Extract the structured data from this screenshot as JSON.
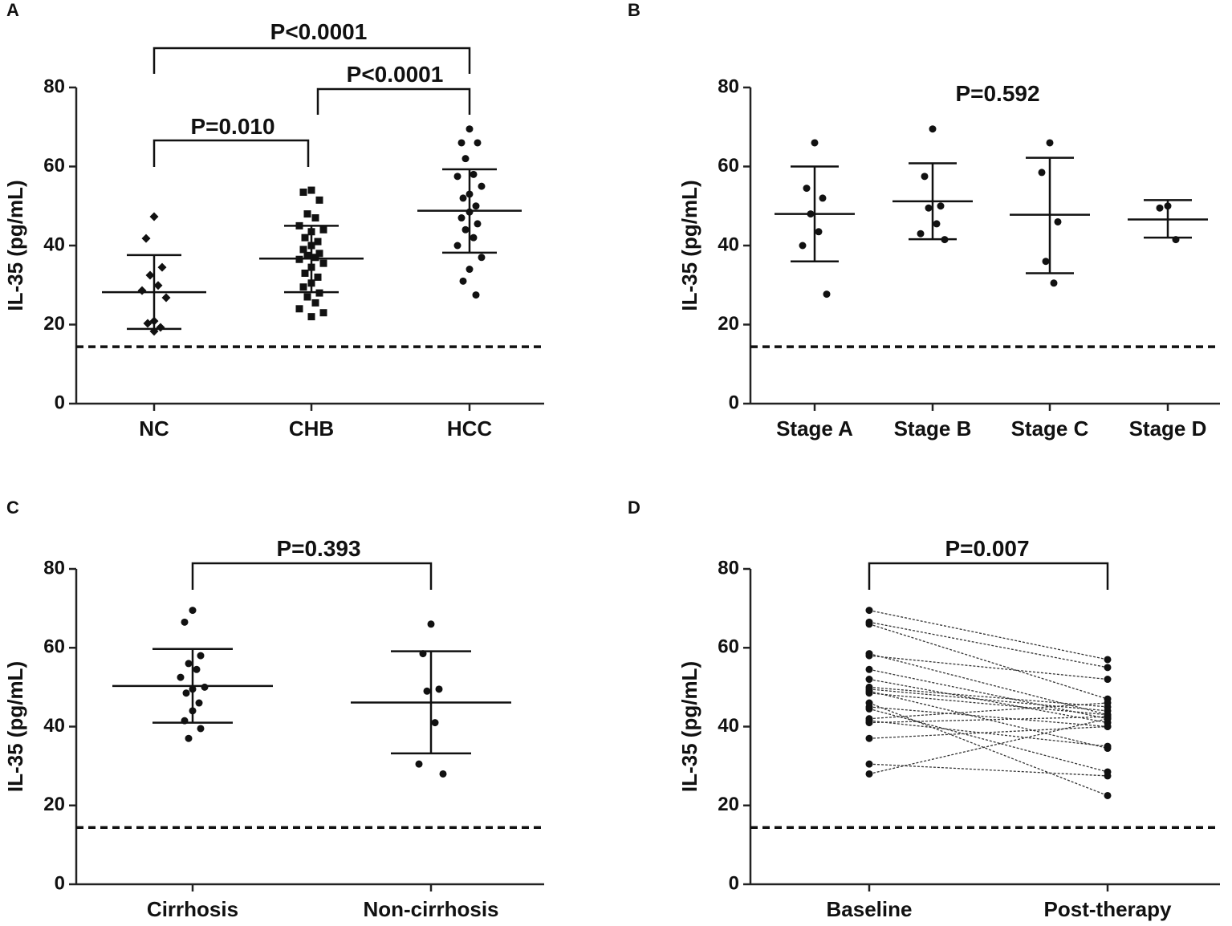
{
  "chart_data": [
    {
      "type": "dot_plot",
      "panel_label": "A",
      "ylabel": "IL-35 (pg/mL)",
      "categories": [
        "NC",
        "CHB",
        "HCC"
      ],
      "marker": [
        "diamond",
        "square",
        "circle"
      ],
      "values": [
        [
          47.3,
          41.8,
          34.5,
          32.5,
          29.9,
          28.6,
          26.8,
          20.9,
          20.3,
          19.3,
          18.3
        ],
        [
          54,
          53.5,
          51.5,
          48,
          47,
          45,
          44,
          43.5,
          42,
          41,
          40,
          39,
          38,
          37.5,
          37,
          36.5,
          35.5,
          34.5,
          33,
          32,
          30.5,
          29.5,
          28,
          27,
          25.5,
          24,
          23,
          22
        ],
        [
          69.5,
          66,
          66,
          62,
          58,
          57.5,
          55,
          53,
          52,
          50,
          48.5,
          47,
          45.5,
          44,
          42,
          40,
          37,
          34,
          31,
          27.5
        ]
      ],
      "mean": [
        28.2,
        36.7,
        48.8
      ],
      "sd_high": [
        37.6,
        45,
        59.3
      ],
      "sd_low": [
        18.9,
        28.2,
        38.2
      ],
      "reference_line": 14.4,
      "ylim": [
        0,
        80
      ],
      "yticks": [
        0,
        20,
        40,
        60,
        80
      ],
      "annotations": [
        "P<0.0001",
        "P<0.0001",
        "P=0.010"
      ]
    },
    {
      "type": "dot_plot",
      "panel_label": "B",
      "ylabel": "IL-35 (pg/mL)",
      "categories": [
        "Stage A",
        "Stage B",
        "Stage C",
        "Stage D"
      ],
      "marker": [
        "circle",
        "circle",
        "circle",
        "circle"
      ],
      "values": [
        [
          66,
          54.5,
          52,
          48,
          43.5,
          40,
          27.7
        ],
        [
          69.5,
          57.5,
          50,
          49.5,
          45.5,
          43,
          41.5
        ],
        [
          66,
          58.5,
          46,
          36,
          30.5
        ],
        [
          50,
          49.5,
          41.5
        ]
      ],
      "mean": [
        48,
        51.2,
        47.8,
        46.6
      ],
      "sd_high": [
        60,
        60.8,
        62.2,
        51.5
      ],
      "sd_low": [
        36,
        41.6,
        33,
        42
      ],
      "reference_line": 14.4,
      "ylim": [
        0,
        80
      ],
      "yticks": [
        0,
        20,
        40,
        60,
        80
      ],
      "annotations": [
        "P=0.592"
      ]
    },
    {
      "type": "dot_plot",
      "panel_label": "C",
      "ylabel": "IL-35 (pg/mL)",
      "categories": [
        "Cirrhosis",
        "Non-cirrhosis"
      ],
      "marker": [
        "circle",
        "circle"
      ],
      "values": [
        [
          69.5,
          66.5,
          58,
          56,
          54.5,
          52.5,
          50,
          49.5,
          48.5,
          46,
          44,
          41.5,
          39.5,
          37
        ],
        [
          66,
          58.5,
          49.5,
          49,
          41,
          30.5,
          28
        ]
      ],
      "mean": [
        50.3,
        46.1
      ],
      "sd_high": [
        59.7,
        59.1
      ],
      "sd_low": [
        41,
        33.2
      ],
      "reference_line": 14.4,
      "ylim": [
        0,
        80
      ],
      "yticks": [
        0,
        20,
        40,
        60,
        80
      ],
      "annotations": [
        "P=0.393"
      ]
    },
    {
      "type": "paired",
      "panel_label": "D",
      "ylabel": "IL-35 (pg/mL)",
      "categories": [
        "Baseline",
        "Post-therapy"
      ],
      "values": [
        [
          69.5,
          66.5,
          66,
          58.5,
          58,
          54.5,
          52,
          50,
          49.5,
          49,
          48.5,
          46,
          45,
          44.5,
          42,
          41.5,
          41,
          37,
          30.5,
          28
        ],
        [
          57,
          55,
          47,
          43,
          52,
          42,
          41,
          45,
          44,
          34.5,
          43,
          22.5,
          40,
          28.5,
          46,
          35,
          42.5,
          40,
          27.5,
          42
        ]
      ],
      "reference_line": 14.4,
      "ylim": [
        0,
        80
      ],
      "yticks": [
        0,
        20,
        40,
        60,
        80
      ],
      "annotations": [
        "P=0.007"
      ]
    }
  ]
}
